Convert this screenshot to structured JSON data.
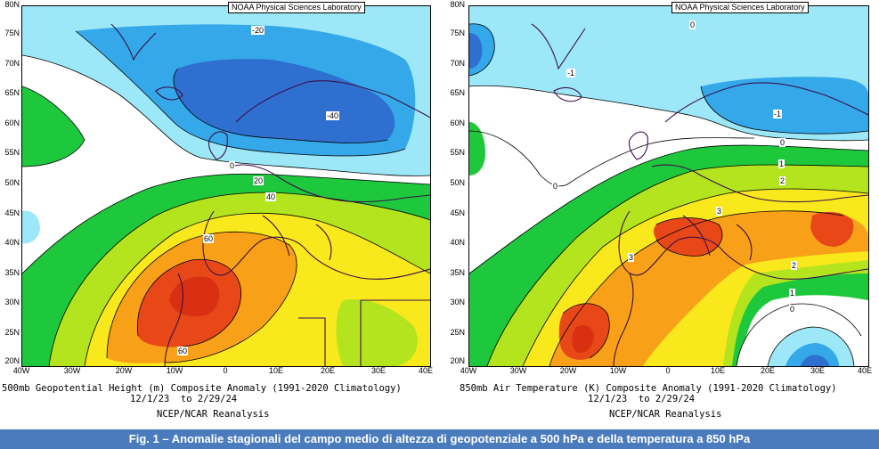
{
  "panels": [
    {
      "credit": "NOAA Physical Sciences Laboratory",
      "lat_labels": [
        "80N",
        "75N",
        "70N",
        "65N",
        "60N",
        "55N",
        "50N",
        "45N",
        "40N",
        "35N",
        "30N",
        "25N",
        "20N"
      ],
      "lon_labels": [
        "40W",
        "30W",
        "20W",
        "10W",
        "0",
        "10E",
        "20E",
        "30E",
        "40E"
      ],
      "contour_labels": [
        "-20",
        "-40",
        "0",
        "20",
        "40",
        "60",
        "60"
      ],
      "caption_line1": "500mb Geopotential Height (m) Composite Anomaly (1991-2020 Climatology)",
      "caption_line2": "12/1/23  to 2/29/24",
      "caption_line3": "NCEP/NCAR Reanalysis"
    },
    {
      "credit": "NOAA Physical Sciences Laboratory",
      "lat_labels": [
        "80N",
        "75N",
        "70N",
        "65N",
        "60N",
        "55N",
        "50N",
        "45N",
        "40N",
        "35N",
        "30N",
        "25N",
        "20N"
      ],
      "lon_labels": [
        "40W",
        "30W",
        "20W",
        "10W",
        "0",
        "10E",
        "20E",
        "30E",
        "40E"
      ],
      "contour_labels": [
        "0",
        "-1",
        "-1",
        "0",
        "0",
        "1",
        "2",
        "3",
        "3",
        "2",
        "1",
        "0"
      ],
      "caption_line1": "850mb Air Temperature (K) Composite Anomaly (1991-2020 Climatology)",
      "caption_line2": "12/1/23  to 2/29/24",
      "caption_line3": "NCEP/NCAR Reanalysis"
    }
  ],
  "figure_caption": "Fig. 1 – Anomalie stagionali del campo medio di altezza di geopotenziale a 500 hPa e della temperatura a 850 hPa",
  "colors": {
    "banner": "#4a7bbd",
    "contour": "#000000",
    "coastline": "#3b0f4a",
    "neg_dark": "#2f6fd0",
    "neg_mid": "#34a8e8",
    "neg_light": "#9ce8f8",
    "pos_green": "#1ec83c",
    "pos_lime": "#b4e41e",
    "pos_yellow": "#f8e81c",
    "pos_orange": "#f8a018",
    "pos_red": "#e84818"
  }
}
